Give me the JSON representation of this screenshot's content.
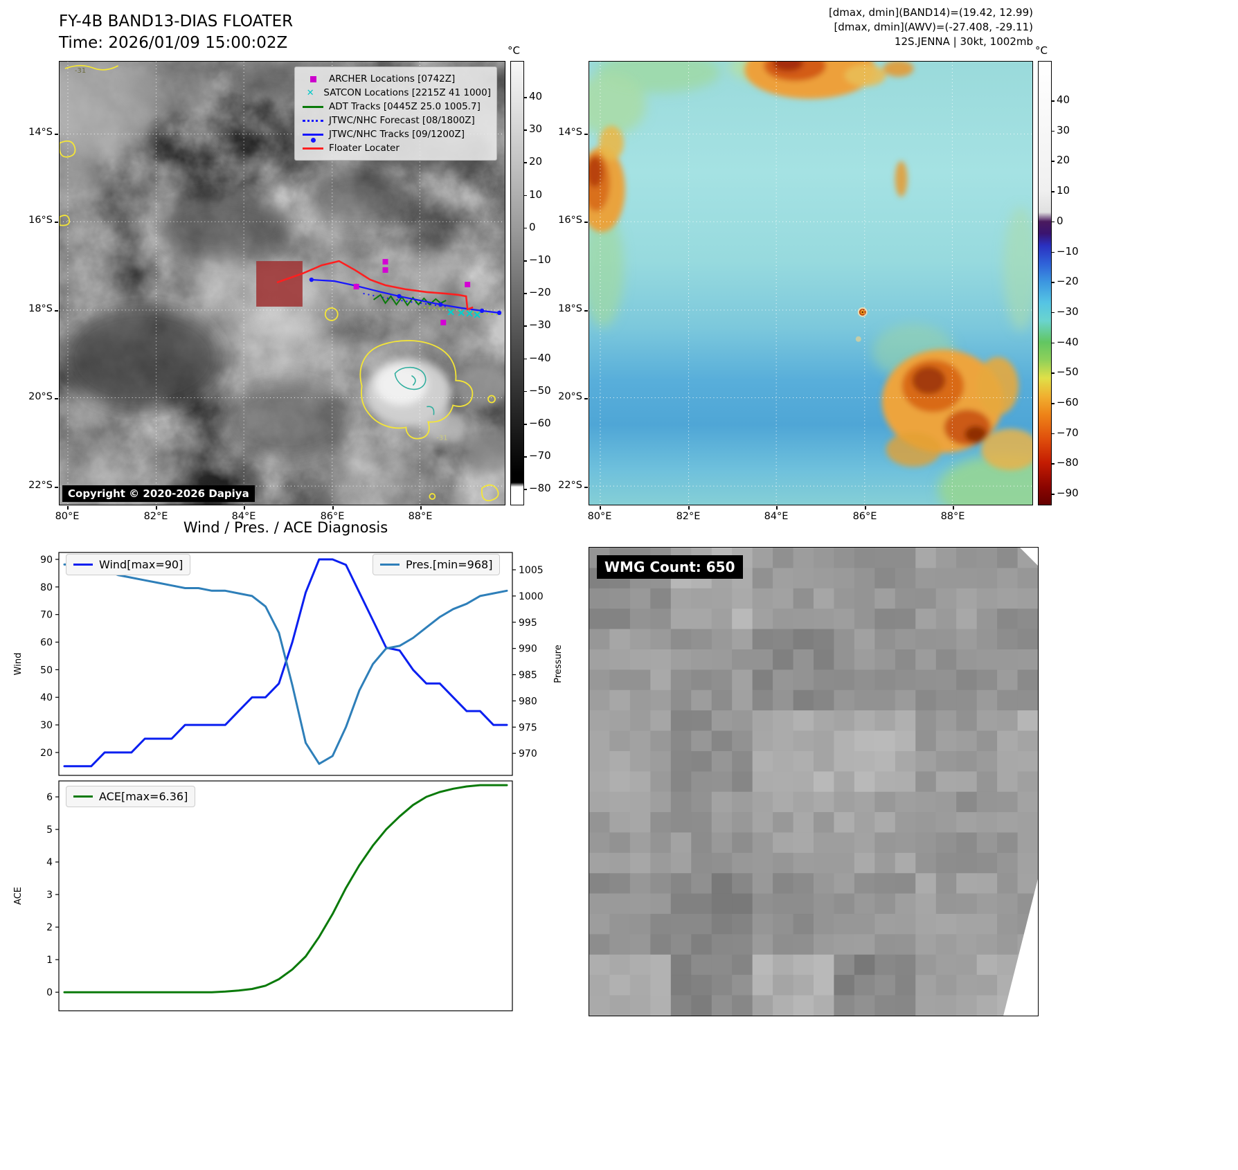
{
  "ir": {
    "title_line1": "FY-4B BAND13-DIAS FLOATER",
    "title_line2": "Time: 2026/01/09 15:00:02Z",
    "copyright": "Copyright © 2020-2026 Dapiya",
    "contour_label": "-31",
    "legend": [
      {
        "marker": "square",
        "color": "#cc00cc",
        "label": "ARCHER Locations [0742Z]"
      },
      {
        "marker": "x",
        "color": "#00c8c8",
        "label": "SATCON Locations [2215Z 41 1000]"
      },
      {
        "marker": "line",
        "color": "#0a7a0a",
        "label": "ADT Tracks [0445Z 25.0 1005.7]"
      },
      {
        "marker": "dotted",
        "color": "#1515ff",
        "label": "JTWC/NHC Forecast [08/1800Z]"
      },
      {
        "marker": "line-dot",
        "color": "#1515ff",
        "label": "JTWC/NHC Tracks [09/1200Z]"
      },
      {
        "marker": "line",
        "color": "#ff1f1f",
        "label": "Floater Locater"
      }
    ],
    "lat_ticks": [
      "14°S",
      "16°S",
      "18°S",
      "20°S",
      "22°S"
    ],
    "lon_ticks": [
      "80°E",
      "82°E",
      "84°E",
      "86°E",
      "88°E"
    ],
    "colorbar": {
      "unit": "°C",
      "ticks": [
        40,
        30,
        20,
        10,
        0,
        -10,
        -20,
        -30,
        -40,
        -50,
        -60,
        -70,
        -80
      ]
    }
  },
  "awv": {
    "header_line1": "[dmax, dmin](BAND14)=(19.42, 12.99)",
    "header_line2": "[dmax, dmin](AWV)=(-27.408, -29.11)",
    "header_line3": "12S.JENNA | 30kt, 1002mb",
    "lat_ticks": [
      "14°S",
      "16°S",
      "18°S",
      "20°S",
      "22°S"
    ],
    "lon_ticks": [
      "80°E",
      "82°E",
      "84°E",
      "86°E",
      "88°E"
    ],
    "colorbar": {
      "unit": "°C",
      "ticks": [
        40,
        30,
        20,
        10,
        0,
        -10,
        -20,
        -30,
        -40,
        -50,
        -60,
        -70,
        -80,
        -90
      ]
    }
  },
  "diagnosis": {
    "title": "Wind / Pres. / ACE Diagnosis"
  },
  "wmg": {
    "label": "WMG Count: 650"
  },
  "chart_data": [
    {
      "type": "line",
      "title": "Wind / Pres. / ACE Diagnosis",
      "x_axis": {
        "label": "",
        "tick_labels_visible": false
      },
      "grid": false,
      "series": [
        {
          "name": "Wind[max=90]",
          "axis": "left",
          "color": "#0a1ff0",
          "values": [
            15,
            15,
            15,
            20,
            20,
            20,
            25,
            25,
            25,
            30,
            30,
            30,
            30,
            35,
            40,
            40,
            45,
            60,
            78,
            90,
            90,
            88,
            78,
            68,
            58,
            57,
            50,
            45,
            45,
            40,
            35,
            35,
            30,
            30
          ]
        },
        {
          "name": "Pres.[min=968]",
          "axis": "right",
          "color": "#2e7fb9",
          "values": [
            1006,
            1006,
            1005.5,
            1005,
            1004,
            1003.5,
            1003,
            1002.5,
            1002,
            1001.5,
            1001.5,
            1001,
            1001,
            1000.5,
            1000,
            998,
            993,
            983,
            972,
            968,
            969.5,
            975,
            982,
            987,
            990,
            990.5,
            992,
            994,
            996,
            997.5,
            998.5,
            1000,
            1000.5,
            1001
          ]
        }
      ],
      "left_axis": {
        "label": "Wind",
        "ticks": [
          20,
          30,
          40,
          50,
          60,
          70,
          80,
          90
        ],
        "range": [
          11.7,
          92.5
        ]
      },
      "right_axis": {
        "label": "Pressure",
        "ticks": [
          970,
          975,
          980,
          985,
          990,
          995,
          1000,
          1005
        ],
        "range": [
          965.8,
          1008.3
        ]
      },
      "legend_position": [
        "upper left",
        "upper right"
      ]
    },
    {
      "type": "line",
      "grid": false,
      "series": [
        {
          "name": "ACE[max=6.36]",
          "axis": "left",
          "color": "#0a7a0a",
          "values": [
            0,
            0,
            0,
            0,
            0,
            0,
            0,
            0,
            0,
            0,
            0,
            0,
            0.02,
            0.05,
            0.1,
            0.2,
            0.4,
            0.7,
            1.1,
            1.7,
            2.4,
            3.2,
            3.9,
            4.5,
            5.0,
            5.4,
            5.75,
            6.0,
            6.15,
            6.25,
            6.32,
            6.36,
            6.36,
            6.36
          ]
        }
      ],
      "left_axis": {
        "label": "ACE",
        "ticks": [
          0,
          1,
          2,
          3,
          4,
          5,
          6
        ],
        "range": [
          -0.57,
          6.49
        ]
      },
      "legend_position": [
        "upper left"
      ]
    }
  ]
}
